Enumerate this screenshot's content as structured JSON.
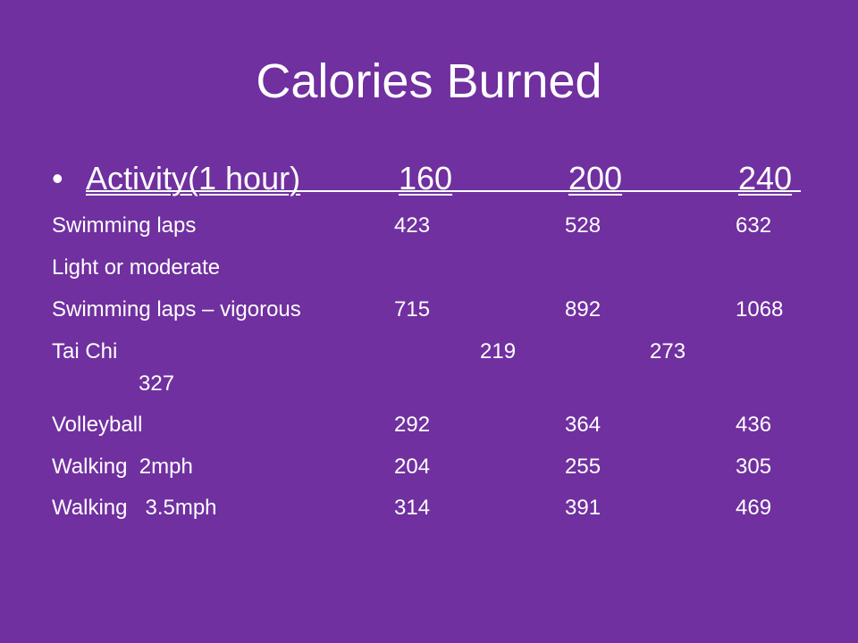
{
  "slide": {
    "title": "Calories Burned",
    "header": {
      "bullet": "•",
      "activity": "Activity(1 hour)",
      "weights": [
        "160",
        "200",
        "240"
      ]
    },
    "rows": [
      {
        "activity": "Swimming laps",
        "values": [
          "423",
          "528",
          "632"
        ]
      },
      {
        "activity": "Light or moderate",
        "values": [
          "",
          "",
          ""
        ]
      },
      {
        "activity": "Swimming laps – vigorous",
        "values": [
          "715",
          "892",
          "1068"
        ]
      },
      {
        "activity": "Tai Chi",
        "values": [
          "219",
          "273",
          "327"
        ]
      },
      {
        "activity": "Volleyball",
        "values": [
          "292",
          "364",
          "436"
        ]
      },
      {
        "activity": "Walking  2mph",
        "values": [
          "204",
          "255",
          "305"
        ]
      },
      {
        "activity": "Walking   3.5mph",
        "values": [
          "314",
          "391",
          "469"
        ]
      }
    ]
  }
}
